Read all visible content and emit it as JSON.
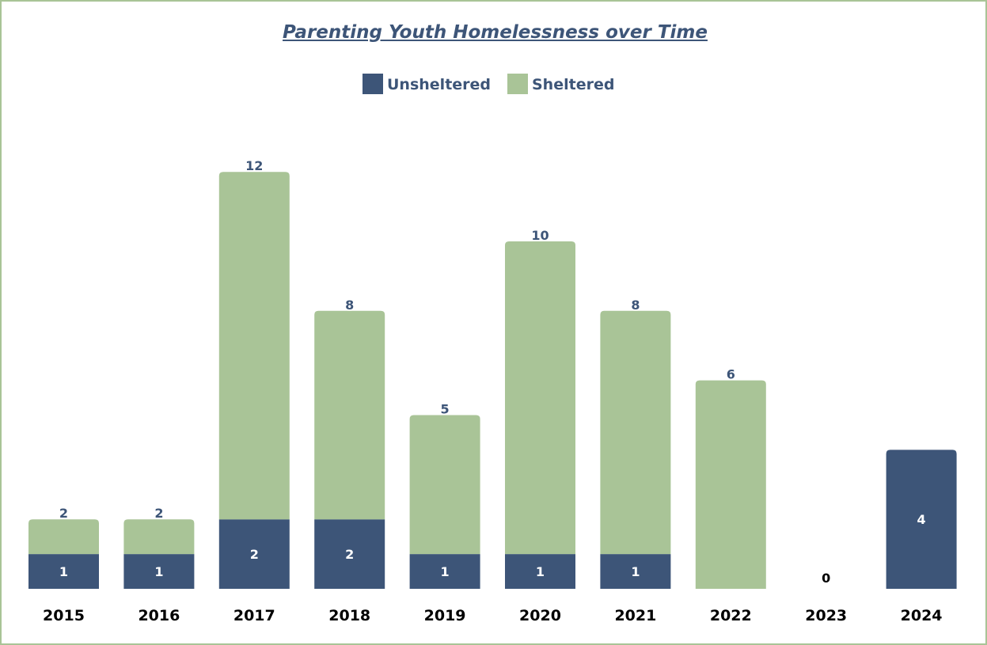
{
  "chart_data": {
    "type": "bar",
    "stacked": true,
    "title": "Parenting Youth Homelessness over Time",
    "xlabel": "",
    "ylabel": "",
    "ylim": [
      0,
      13
    ],
    "grid": false,
    "legend_position": "top-center",
    "categories": [
      "2015",
      "2016",
      "2017",
      "2018",
      "2019",
      "2020",
      "2021",
      "2022",
      "2023",
      "2024"
    ],
    "series": [
      {
        "name": "Unsheltered",
        "color": "#3d5578",
        "values": [
          1,
          1,
          2,
          2,
          1,
          1,
          1,
          0,
          0,
          4
        ]
      },
      {
        "name": "Sheltered",
        "color": "#a9c497",
        "values": [
          1,
          1,
          10,
          6,
          4,
          9,
          7,
          6,
          0,
          0
        ]
      }
    ],
    "data_labels": {
      "unsheltered": [
        "1",
        "1",
        "2",
        "2",
        "1",
        "1",
        "1",
        "",
        "",
        "4"
      ],
      "totals": [
        "2",
        "2",
        "12",
        "8",
        "5",
        "10",
        "8",
        "6",
        "0",
        ""
      ]
    }
  }
}
